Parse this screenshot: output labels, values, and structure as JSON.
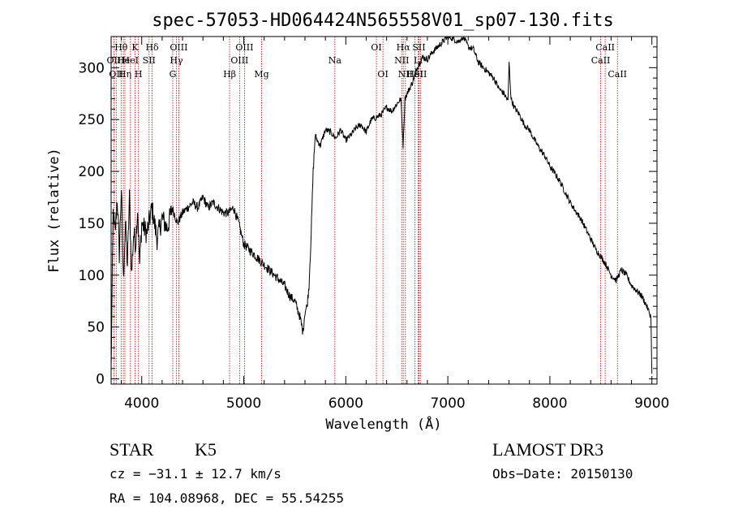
{
  "chart_data": {
    "type": "line",
    "title": "spec-57053-HD064424N565558V01_sp07-130.fits",
    "xlabel": "Wavelength (Å)",
    "ylabel": "Flux (relative)",
    "xlim": [
      3700,
      9050
    ],
    "ylim": [
      -5,
      330
    ],
    "xticks": [
      4000,
      5000,
      6000,
      7000,
      8000,
      9000
    ],
    "yticks": [
      0,
      50,
      100,
      150,
      200,
      250,
      300
    ],
    "series": [
      {
        "name": "flux",
        "x": [
          3700,
          3720,
          3740,
          3760,
          3780,
          3800,
          3820,
          3840,
          3860,
          3880,
          3900,
          3920,
          3940,
          3960,
          3980,
          4000,
          4050,
          4100,
          4150,
          4200,
          4250,
          4300,
          4350,
          4400,
          4450,
          4500,
          4550,
          4600,
          4650,
          4700,
          4750,
          4800,
          4850,
          4900,
          4950,
          5000,
          5050,
          5100,
          5150,
          5200,
          5250,
          5300,
          5350,
          5400,
          5450,
          5500,
          5550,
          5580,
          5600,
          5620,
          5640,
          5660,
          5680,
          5700,
          5720,
          5750,
          5800,
          5850,
          5900,
          5950,
          6000,
          6050,
          6100,
          6150,
          6200,
          6250,
          6300,
          6350,
          6400,
          6450,
          6500,
          6540,
          6562,
          6580,
          6600,
          6650,
          6700,
          6750,
          6800,
          6850,
          6900,
          6950,
          7000,
          7050,
          7100,
          7150,
          7200,
          7250,
          7300,
          7350,
          7400,
          7450,
          7500,
          7550,
          7590,
          7600,
          7620,
          7650,
          7700,
          7750,
          7800,
          7850,
          7900,
          7950,
          8000,
          8050,
          8100,
          8150,
          8200,
          8250,
          8300,
          8350,
          8400,
          8450,
          8500,
          8550,
          8600,
          8650,
          8700,
          8750,
          8800,
          8850,
          8900,
          8950,
          8990,
          9000
        ],
        "y": [
          10,
          160,
          140,
          175,
          120,
          185,
          95,
          150,
          110,
          175,
          100,
          140,
          130,
          165,
          110,
          150,
          140,
          165,
          135,
          155,
          145,
          165,
          150,
          160,
          165,
          170,
          165,
          175,
          165,
          170,
          165,
          160,
          160,
          165,
          150,
          130,
          125,
          120,
          115,
          110,
          105,
          100,
          95,
          90,
          80,
          75,
          60,
          45,
          65,
          70,
          90,
          140,
          200,
          235,
          230,
          225,
          240,
          238,
          232,
          240,
          230,
          235,
          242,
          245,
          238,
          250,
          252,
          255,
          262,
          258,
          265,
          270,
          225,
          270,
          275,
          285,
          300,
          310,
          308,
          315,
          320,
          325,
          330,
          328,
          325,
          330,
          320,
          318,
          305,
          300,
          295,
          290,
          280,
          275,
          268,
          305,
          270,
          262,
          255,
          245,
          240,
          230,
          222,
          215,
          205,
          198,
          190,
          180,
          170,
          162,
          155,
          145,
          135,
          125,
          118,
          110,
          100,
          95,
          105,
          100,
          90,
          85,
          80,
          70,
          60,
          5
        ]
      }
    ],
    "spectral_lines": [
      {
        "wavelength": 3727,
        "label": "OII",
        "row": 2
      },
      {
        "wavelength": 3750,
        "label": "OII",
        "row": 3
      },
      {
        "wavelength": 3798,
        "label": "Hθ",
        "row": 1
      },
      {
        "wavelength": 3820,
        "label": "He",
        "row": 2
      },
      {
        "wavelength": 3835,
        "label": "Hη",
        "row": 3
      },
      {
        "wavelength": 3889,
        "label": "HeI",
        "row": 2
      },
      {
        "wavelength": 3934,
        "label": "K",
        "row": 1
      },
      {
        "wavelength": 3968,
        "label": "H",
        "row": 3
      },
      {
        "wavelength": 4072,
        "label": "SII",
        "row": 2
      },
      {
        "wavelength": 4102,
        "label": "Hδ",
        "row": 1
      },
      {
        "wavelength": 4304,
        "label": "G",
        "row": 3
      },
      {
        "wavelength": 4340,
        "label": "Hγ",
        "row": 2
      },
      {
        "wavelength": 4363,
        "label": "OIII",
        "row": 1
      },
      {
        "wavelength": 4861,
        "label": "Hβ",
        "row": 3
      },
      {
        "wavelength": 4959,
        "label": "OIII",
        "row": 2
      },
      {
        "wavelength": 5007,
        "label": "OIII",
        "row": 1
      },
      {
        "wavelength": 5175,
        "label": "Mg",
        "row": 3
      },
      {
        "wavelength": 5893,
        "label": "Na",
        "row": 2
      },
      {
        "wavelength": 6300,
        "label": "OI",
        "row": 1
      },
      {
        "wavelength": 6364,
        "label": "OI",
        "row": 3
      },
      {
        "wavelength": 6548,
        "label": "NII",
        "row": 2
      },
      {
        "wavelength": 6563,
        "label": "Hα",
        "row": 1
      },
      {
        "wavelength": 6584,
        "label": "NII",
        "row": 3
      },
      {
        "wavelength": 6678,
        "label": "HeI",
        "row": 3
      },
      {
        "wavelength": 6708,
        "label": "Li",
        "row": 2
      },
      {
        "wavelength": 6717,
        "label": "SII",
        "row": 1
      },
      {
        "wavelength": 6731,
        "label": "SII",
        "row": 3
      },
      {
        "wavelength": 8498,
        "label": "CaII",
        "row": 2
      },
      {
        "wavelength": 8542,
        "label": "CaII",
        "row": 1
      },
      {
        "wavelength": 8662,
        "label": "CaII",
        "row": 3
      }
    ]
  },
  "info": {
    "object_class": "STAR",
    "subclass": "K5",
    "survey": "LAMOST DR3",
    "redshift": "cz = −31.1 ± 12.7 km/s",
    "obs_date": "Obs−Date: 20150130",
    "coords": "RA = 104.08968, DEC =  55.54255"
  },
  "colors": {
    "line_marker": "#cc0000",
    "spectrum": "#000000"
  }
}
